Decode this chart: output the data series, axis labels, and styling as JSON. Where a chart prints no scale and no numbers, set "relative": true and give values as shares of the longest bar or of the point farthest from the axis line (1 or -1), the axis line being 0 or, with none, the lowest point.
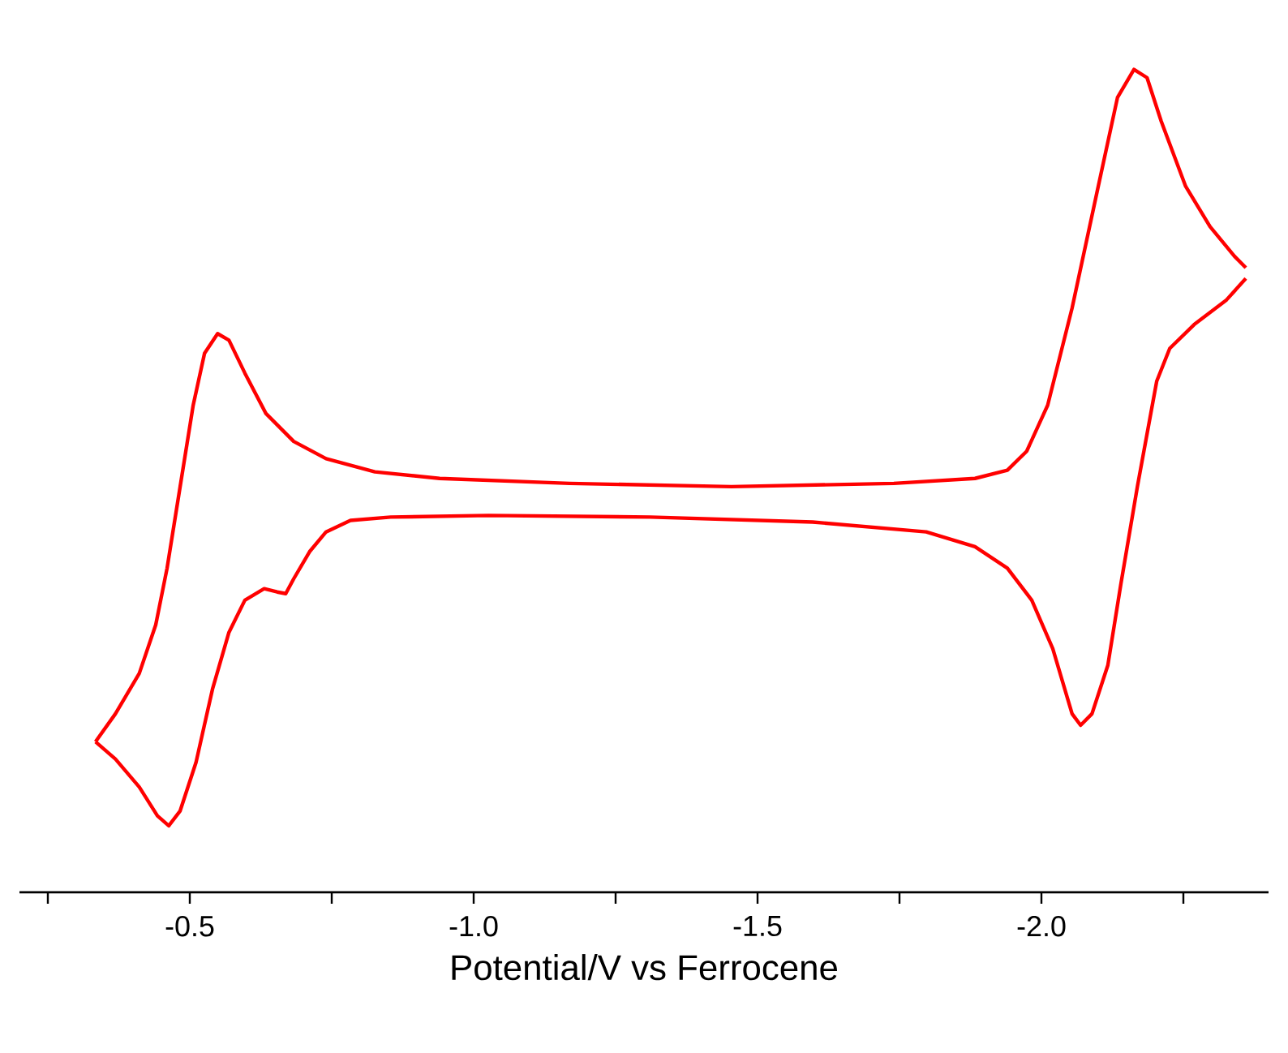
{
  "chart_data": {
    "type": "line",
    "relative": true,
    "xlabel": "Potential/V vs Ferrocene",
    "xlim": [
      -0.2,
      -2.4
    ],
    "xticks": [
      {
        "value": -0.25,
        "label": null
      },
      -0.5,
      {
        "value": -0.75,
        "label": null
      },
      {
        "value": -1,
        "label": "-1.0"
      },
      {
        "value": -1.25,
        "label": null
      },
      -1.5,
      {
        "value": -1.75,
        "label": null
      },
      {
        "value": -2,
        "label": "-2.0"
      },
      {
        "value": -2.25,
        "label": null
      }
    ],
    "series": [
      {
        "color": "#ff0000",
        "line_style": "solid",
        "x": [
          -0.334,
          -0.369,
          -0.411,
          -0.44,
          -0.46,
          -0.483,
          -0.506,
          -0.526,
          -0.549,
          -0.569,
          -0.597,
          -0.634,
          -0.683,
          -0.74,
          -0.826,
          -0.94,
          -1.169,
          -1.454,
          -1.74,
          -1.883,
          -1.94,
          -1.974,
          -2.011,
          -2.054,
          -2.097,
          -2.134,
          -2.163,
          -2.186,
          -2.211,
          -2.254,
          -2.297,
          -2.34,
          -2.36
        ],
        "values": [
          0.183,
          0.217,
          0.266,
          0.325,
          0.394,
          0.493,
          0.592,
          0.655,
          0.679,
          0.671,
          0.631,
          0.582,
          0.548,
          0.527,
          0.511,
          0.503,
          0.497,
          0.493,
          0.497,
          0.503,
          0.513,
          0.536,
          0.592,
          0.71,
          0.848,
          0.966,
          1,
          0.99,
          0.937,
          0.858,
          0.809,
          0.773,
          0.759
        ]
      },
      {
        "color": "#ff0000",
        "line_style": "solid",
        "x": [
          -2.36,
          -2.326,
          -2.269,
          -2.226,
          -2.203,
          -2.169,
          -2.14,
          -2.117,
          -2.089,
          -2.069,
          -2.054,
          -2.02,
          -1.983,
          -1.94,
          -1.883,
          -1.797,
          -1.597,
          -1.311,
          -1.026,
          -0.854,
          -0.783,
          -0.74,
          -0.711,
          -0.683,
          -0.669,
          -0.654,
          -0.631,
          -0.597,
          -0.569,
          -0.54,
          -0.511,
          -0.483,
          -0.463,
          -0.443,
          -0.411,
          -0.369,
          -0.334
        ],
        "values": [
          0.746,
          0.72,
          0.69,
          0.661,
          0.621,
          0.493,
          0.375,
          0.276,
          0.217,
          0.203,
          0.217,
          0.296,
          0.355,
          0.394,
          0.42,
          0.438,
          0.45,
          0.456,
          0.458,
          0.456,
          0.452,
          0.438,
          0.414,
          0.381,
          0.363,
          0.365,
          0.369,
          0.355,
          0.316,
          0.247,
          0.158,
          0.099,
          0.081,
          0.093,
          0.128,
          0.162,
          0.183
        ]
      }
    ]
  }
}
